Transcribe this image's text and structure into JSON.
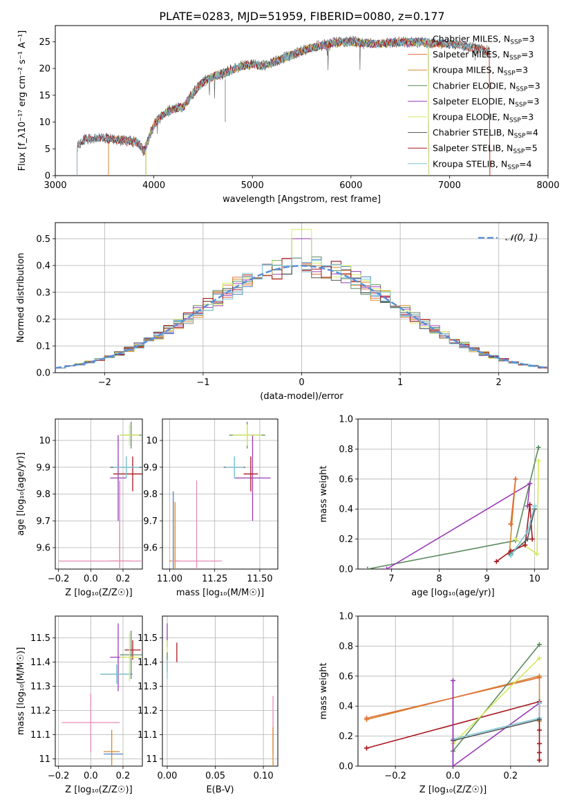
{
  "title": "PLATE=0283, MJD=51959, FIBERID=0080, z=0.177",
  "colors": {
    "Chabrier MILES": "#4c83c4",
    "Salpeter MILES": "#e0703c",
    "Kroupa MILES": "#d4882e",
    "Chabrier ELODIE": "#5a8a5e",
    "Salpeter ELODIE": "#9a3ab5",
    "Kroupa ELODIE": "#d4ea5c",
    "Chabrier STELIB": "#555555",
    "Salpeter STELIB": "#a8141c",
    "Kroupa STELIB": "#7cc8d8",
    "pink": "#e88ab8",
    "gauss": "#5b8fd8"
  },
  "chart_data": [
    {
      "type": "line",
      "title": "PLATE=0283, MJD=51959, FIBERID=0080, z=0.177",
      "xlabel": "wavelength [Angstrom, rest frame]",
      "ylabel": "Flux [f_λ10⁻¹⁷ erg cm⁻² s⁻¹ A⁻¹]",
      "xlim": [
        3000,
        8000
      ],
      "ylim": [
        0,
        28
      ],
      "xticks": [
        3000,
        4000,
        5000,
        6000,
        7000,
        8000
      ],
      "yticks": [
        0,
        5,
        10,
        15,
        20,
        25
      ],
      "legend_position": "top-right",
      "legend": [
        {
          "label": "Chabrier MILES, N",
          "sub": "SSP",
          "suffix": "=3",
          "key": "Chabrier MILES"
        },
        {
          "label": "Salpeter MILES, N",
          "sub": "SSP",
          "suffix": "=3",
          "key": "Salpeter MILES"
        },
        {
          "label": "Kroupa MILES, N",
          "sub": "SSP",
          "suffix": "=3",
          "key": "Kroupa MILES"
        },
        {
          "label": "Chabrier ELODIE, N",
          "sub": "SSP",
          "suffix": "=3",
          "key": "Chabrier ELODIE"
        },
        {
          "label": "Salpeter ELODIE, N",
          "sub": "SSP",
          "suffix": "=3",
          "key": "Salpeter ELODIE"
        },
        {
          "label": "Kroupa ELODIE, N",
          "sub": "SSP",
          "suffix": "=3",
          "key": "Kroupa ELODIE"
        },
        {
          "label": "Chabrier STELIB, N",
          "sub": "SSP",
          "suffix": "=4",
          "key": "Chabrier STELIB"
        },
        {
          "label": "Salpeter STELIB, N",
          "sub": "SSP",
          "suffix": "=5",
          "key": "Salpeter STELIB"
        },
        {
          "label": "Kroupa STELIB, N",
          "sub": "SSP",
          "suffix": "=4",
          "key": "Kroupa STELIB"
        }
      ],
      "continuum": [
        [
          3220,
          5.2
        ],
        [
          3300,
          6.8
        ],
        [
          3400,
          7.0
        ],
        [
          3500,
          7.1
        ],
        [
          3600,
          6.8
        ],
        [
          3700,
          6.6
        ],
        [
          3800,
          6.3
        ],
        [
          3850,
          6.0
        ],
        [
          3900,
          4.5
        ],
        [
          3950,
          7.0
        ],
        [
          4000,
          9.5
        ],
        [
          4100,
          11.5
        ],
        [
          4200,
          12.5
        ],
        [
          4300,
          12.8
        ],
        [
          4400,
          15.5
        ],
        [
          4500,
          17.5
        ],
        [
          4600,
          18.5
        ],
        [
          4700,
          19.0
        ],
        [
          4800,
          19.8
        ],
        [
          4900,
          20.5
        ],
        [
          5000,
          20.8
        ],
        [
          5100,
          20.5
        ],
        [
          5200,
          21.0
        ],
        [
          5300,
          21.8
        ],
        [
          5400,
          22.5
        ],
        [
          5500,
          23.2
        ],
        [
          5600,
          23.8
        ],
        [
          5700,
          24.3
        ],
        [
          5800,
          24.7
        ],
        [
          5900,
          24.9
        ],
        [
          6000,
          25.0
        ],
        [
          6100,
          24.8
        ],
        [
          6200,
          24.6
        ],
        [
          6300,
          24.6
        ],
        [
          6400,
          24.8
        ],
        [
          6500,
          24.9
        ],
        [
          6600,
          24.9
        ],
        [
          6700,
          25.0
        ],
        [
          6800,
          24.7
        ],
        [
          6900,
          24.7
        ],
        [
          7000,
          24.5
        ],
        [
          7100,
          24.3
        ],
        [
          7200,
          24.0
        ],
        [
          7300,
          23.6
        ],
        [
          7410,
          23.2
        ]
      ],
      "model_ranges": {
        "Chabrier MILES": [
          3540,
          7410
        ],
        "Salpeter MILES": [
          3540,
          7410
        ],
        "Kroupa MILES": [
          3540,
          7410
        ],
        "Chabrier ELODIE": [
          3920,
          6790
        ],
        "Salpeter ELODIE": [
          3920,
          6790
        ],
        "Kroupa ELODIE": [
          3920,
          6790
        ],
        "Chabrier STELIB": [
          3220,
          7410
        ],
        "Salpeter STELIB": [
          3220,
          7410
        ],
        "Kroupa STELIB": [
          3220,
          7410
        ]
      }
    },
    {
      "type": "histogram",
      "xlabel": "(data-model)/error",
      "ylabel": "Normed distribution",
      "xlim": [
        -2.5,
        2.5
      ],
      "ylim": [
        0,
        0.56
      ],
      "xticks": [
        -2,
        -1,
        0,
        1,
        2
      ],
      "xticklabels": [
        "−2",
        "−1",
        "0",
        "1",
        "2"
      ],
      "yticks": [
        0.0,
        0.1,
        0.2,
        0.3,
        0.4,
        0.5
      ],
      "legend": [
        {
          "label": "𝒩(0, 1)",
          "key": "gauss"
        }
      ],
      "legend_position": "top-right",
      "bin_width": 0.1
    },
    {
      "type": "errorbar",
      "xlabel": "Z [log₁₀(Z/Z☉)]",
      "ylabel": "age  [log₁₀(age/yr)]",
      "xlim": [
        -0.22,
        0.32
      ],
      "ylim": [
        9.52,
        10.08
      ],
      "xticks": [
        -0.2,
        0.0,
        0.2
      ],
      "xticklabels": [
        "−0.2",
        "0.0",
        "0.2"
      ],
      "yticks": [
        9.6,
        9.7,
        9.8,
        9.9,
        10.0
      ],
      "points": [
        {
          "key": "Chabrier MILES",
          "x": 0.18,
          "xe": 0.0,
          "y": 9.55,
          "ye": 0.3
        },
        {
          "key": "Kroupa MILES",
          "x": 0.18,
          "xe": 0.07,
          "y": 9.55,
          "ye": 0.23
        },
        {
          "key": "pink",
          "x": 0.18,
          "xe": 0.38,
          "y": 9.55,
          "ye": 0.3
        },
        {
          "key": "Salpeter STELIB",
          "x": 0.26,
          "xe": 0.12,
          "y": 9.875,
          "ye": 0.065
        },
        {
          "key": "Salpeter ELODIE",
          "x": 0.17,
          "xe": 0.05,
          "y": 9.86,
          "ye": 0.16
        },
        {
          "key": "Chabrier STELIB",
          "x": 0.22,
          "xe": 0.1,
          "y": 9.9,
          "ye": 0.04
        },
        {
          "key": "Kroupa STELIB",
          "x": 0.22,
          "xe": 0.08,
          "y": 9.9,
          "ye": 0.04
        },
        {
          "key": "Chabrier ELODIE",
          "x": 0.25,
          "xe": 0.07,
          "y": 10.02,
          "ye": 0.05
        },
        {
          "key": "Kroupa ELODIE",
          "x": 0.24,
          "xe": 0.06,
          "y": 10.02,
          "ye": 0.04
        }
      ]
    },
    {
      "type": "errorbar",
      "xlabel": "mass [log₁₀(M/M☉)]",
      "ylabel": "",
      "xlim": [
        10.96,
        11.6
      ],
      "ylim": [
        9.52,
        10.08
      ],
      "xticks": [
        11.0,
        11.25,
        11.5
      ],
      "xticklabels": [
        "11.00",
        "11.25",
        "11.50"
      ],
      "yticks": [
        9.6,
        9.7,
        9.8,
        9.9,
        10.0
      ],
      "points": [
        {
          "key": "Chabrier MILES",
          "x": 11.02,
          "xe": 0.0,
          "y": 9.55,
          "ye": 0.26
        },
        {
          "key": "Kroupa MILES",
          "x": 11.03,
          "xe": 0.03,
          "y": 9.55,
          "ye": 0.22
        },
        {
          "key": "pink",
          "x": 11.15,
          "xe": 0.14,
          "y": 9.55,
          "ye": 0.3
        },
        {
          "key": "Salpeter ELODIE",
          "x": 11.46,
          "xe": 0.1,
          "y": 9.86,
          "ye": 0.16
        },
        {
          "key": "Salpeter STELIB",
          "x": 11.45,
          "xe": 0.04,
          "y": 9.875,
          "ye": 0.065
        },
        {
          "key": "Chabrier STELIB",
          "x": 11.36,
          "xe": 0.06,
          "y": 9.9,
          "ye": 0.04
        },
        {
          "key": "Kroupa STELIB",
          "x": 11.36,
          "xe": 0.05,
          "y": 9.9,
          "ye": 0.04
        },
        {
          "key": "Chabrier ELODIE",
          "x": 11.43,
          "xe": 0.1,
          "y": 10.02,
          "ye": 0.05
        },
        {
          "key": "Kroupa ELODIE",
          "x": 11.43,
          "xe": 0.08,
          "y": 10.02,
          "ye": 0.04
        }
      ]
    },
    {
      "type": "line",
      "xlabel": "age  [log₁₀(age/yr)]",
      "ylabel": "mass weight",
      "xlim": [
        6.3,
        10.28
      ],
      "ylim": [
        0,
        1.0
      ],
      "xticks": [
        7,
        8,
        9,
        10
      ],
      "yticks": [
        0.0,
        0.2,
        0.4,
        0.6,
        0.8,
        1.0
      ],
      "series": [
        {
          "key": "Chabrier ELODIE",
          "points": [
            [
              6.5,
              0.0
            ],
            [
              9.6,
              0.19
            ],
            [
              10.08,
              0.81
            ]
          ]
        },
        {
          "key": "Salpeter ELODIE",
          "points": [
            [
              6.9,
              0.0
            ],
            [
              9.9,
              0.57
            ],
            [
              9.85,
              0.42
            ]
          ]
        },
        {
          "key": "Kroupa ELODIE",
          "points": [
            [
              9.6,
              0.2
            ],
            [
              10.05,
              0.1
            ],
            [
              10.08,
              0.72
            ]
          ]
        },
        {
          "key": "Kroupa MILES",
          "points": [
            [
              9.5,
              0.3
            ],
            [
              9.6,
              0.6
            ],
            [
              9.47,
              0.1
            ]
          ]
        },
        {
          "key": "Salpeter MILES",
          "points": [
            [
              9.5,
              0.3
            ],
            [
              9.6,
              0.6
            ]
          ]
        },
        {
          "key": "Salpeter STELIB",
          "points": [
            [
              9.2,
              0.05
            ],
            [
              9.5,
              0.12
            ],
            [
              9.8,
              0.16
            ],
            [
              9.9,
              0.43
            ],
            [
              9.95,
              0.2
            ]
          ]
        },
        {
          "key": "Chabrier STELIB",
          "points": [
            [
              9.5,
              0.1
            ],
            [
              9.85,
              0.2
            ],
            [
              10.0,
              0.4
            ]
          ]
        },
        {
          "key": "Kroupa STELIB",
          "points": [
            [
              9.5,
              0.09
            ],
            [
              9.85,
              0.25
            ],
            [
              10.0,
              0.42
            ]
          ]
        }
      ]
    },
    {
      "type": "errorbar",
      "xlabel": "Z [log₁₀(Z/Z☉)]",
      "ylabel": "mass [log₁₀(M/M☉)]",
      "xlim": [
        -0.22,
        0.32
      ],
      "ylim": [
        10.97,
        11.59
      ],
      "xticks": [
        -0.2,
        0.0,
        0.2
      ],
      "xticklabels": [
        "−0.2",
        "0.0",
        "0.2"
      ],
      "yticks": [
        11.0,
        11.1,
        11.2,
        11.3,
        11.4,
        11.5
      ],
      "points": [
        {
          "key": "Chabrier MILES",
          "x": 0.14,
          "xe": 0.06,
          "y": 11.02,
          "ye": 0.0
        },
        {
          "key": "Kroupa MILES",
          "x": 0.13,
          "xe": 0.05,
          "y": 11.03,
          "ye": 0.09
        },
        {
          "key": "pink",
          "x": 0.0,
          "xe": 0.18,
          "y": 11.15,
          "ye": 0.12
        },
        {
          "key": "Salpeter ELODIE",
          "x": 0.17,
          "xe": 0.05,
          "y": 11.42,
          "ye": 0.14
        },
        {
          "key": "Salpeter STELIB",
          "x": 0.26,
          "xe": 0.05,
          "y": 11.45,
          "ye": 0.04
        },
        {
          "key": "Chabrier STELIB",
          "x": 0.16,
          "xe": 0.1,
          "y": 11.35,
          "ye": 0.04
        },
        {
          "key": "Kroupa STELIB",
          "x": 0.16,
          "xe": 0.1,
          "y": 11.35,
          "ye": 0.04
        },
        {
          "key": "Chabrier ELODIE",
          "x": 0.25,
          "xe": 0.07,
          "y": 11.43,
          "ye": 0.1
        },
        {
          "key": "Kroupa ELODIE",
          "x": 0.24,
          "xe": 0.06,
          "y": 11.42,
          "ye": 0.1
        }
      ]
    },
    {
      "type": "errorbar",
      "xlabel": "E(B-V)",
      "ylabel": "",
      "xlim": [
        -0.005,
        0.115
      ],
      "ylim": [
        10.97,
        11.59
      ],
      "xticks": [
        0.0,
        0.05,
        0.1
      ],
      "xticklabels": [
        "0.00",
        "0.05",
        "0.10"
      ],
      "yticks": [
        11.0,
        11.1,
        11.2,
        11.3,
        11.4,
        11.5
      ],
      "points": [
        {
          "key": "Salpeter ELODIE",
          "x": 0.0,
          "xe": 0.0,
          "y": 11.51,
          "ye": 0.05
        },
        {
          "key": "Kroupa ELODIE",
          "x": 0.0,
          "xe": 0.0,
          "y": 11.45,
          "ye": 0.04
        },
        {
          "key": "Chabrier ELODIE",
          "x": 0.0,
          "xe": 0.0,
          "y": 11.4,
          "ye": 0.04
        },
        {
          "key": "Kroupa STELIB",
          "x": 0.0,
          "xe": 0.0,
          "y": 11.37,
          "ye": 0.04
        },
        {
          "key": "Salpeter STELIB",
          "x": 0.01,
          "xe": 0.0,
          "y": 11.44,
          "ye": 0.04
        },
        {
          "key": "pink",
          "x": 0.11,
          "xe": 0.0,
          "y": 11.14,
          "ye": 0.12
        },
        {
          "key": "Kroupa MILES",
          "x": 0.11,
          "xe": 0.0,
          "y": 11.03,
          "ye": 0.1
        }
      ]
    },
    {
      "type": "line",
      "xlabel": "Z [log₁₀(Z/Z☉)]",
      "ylabel": "mass weight",
      "xlim": [
        -0.33,
        0.33
      ],
      "ylim": [
        0,
        1.0
      ],
      "xticks": [
        -0.2,
        0.0,
        0.2
      ],
      "xticklabels": [
        "−0.2",
        "0.0",
        "0.2"
      ],
      "yticks": [
        0.0,
        0.2,
        0.4,
        0.6,
        0.8,
        1.0
      ],
      "series": [
        {
          "key": "Kroupa MILES",
          "points": [
            [
              -0.3,
              0.31
            ],
            [
              0.3,
              0.6
            ],
            [
              0.3,
              0.3
            ]
          ]
        },
        {
          "key": "Salpeter MILES",
          "points": [
            [
              -0.3,
              0.32
            ],
            [
              0.3,
              0.59
            ]
          ]
        },
        {
          "key": "Salpeter STELIB",
          "points": [
            [
              -0.3,
              0.12
            ],
            [
              0.3,
              0.43
            ],
            [
              0.3,
              0.04
            ]
          ]
        },
        {
          "key": "Chabrier ELODIE",
          "points": [
            [
              0.0,
              0.1
            ],
            [
              0.3,
              0.81
            ]
          ]
        },
        {
          "key": "Kroupa ELODIE",
          "points": [
            [
              0.0,
              0.15
            ],
            [
              0.3,
              0.72
            ]
          ]
        },
        {
          "key": "Salpeter ELODIE",
          "points": [
            [
              0.0,
              0.57
            ],
            [
              0.0,
              0.0
            ],
            [
              0.3,
              0.42
            ]
          ]
        },
        {
          "key": "Kroupa STELIB",
          "points": [
            [
              0.0,
              0.18
            ],
            [
              0.3,
              0.32
            ],
            [
              0.3,
              0.42
            ]
          ]
        },
        {
          "key": "Chabrier STELIB",
          "points": [
            [
              0.0,
              0.17
            ],
            [
              0.3,
              0.31
            ]
          ]
        }
      ]
    }
  ]
}
